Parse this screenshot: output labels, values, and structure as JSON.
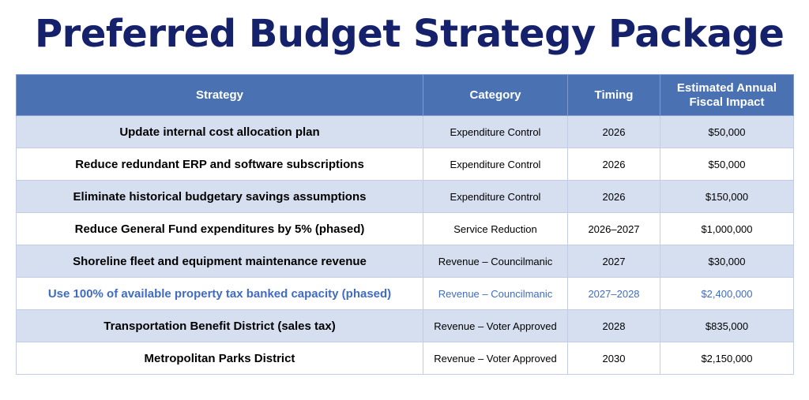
{
  "title": "Preferred Budget Strategy Package",
  "table": {
    "headers": {
      "strategy": "Strategy",
      "category": "Category",
      "timing": "Timing",
      "impact_line1": "Estimated Annual",
      "impact_line2": "Fiscal Impact"
    },
    "rows": [
      {
        "strategy": "Update internal cost allocation plan",
        "category": "Expenditure Control",
        "timing": "2026",
        "impact": "$50,000"
      },
      {
        "strategy": "Reduce redundant ERP and software subscriptions",
        "category": "Expenditure Control",
        "timing": "2026",
        "impact": "$50,000"
      },
      {
        "strategy": "Eliminate historical budgetary savings assumptions",
        "category": "Expenditure Control",
        "timing": "2026",
        "impact": "$150,000"
      },
      {
        "strategy": "Reduce General Fund expenditures by 5% (phased)",
        "category": "Service Reduction",
        "timing": "2026–2027",
        "impact": "$1,000,000"
      },
      {
        "strategy": "Shoreline fleet and equipment maintenance revenue",
        "category": "Revenue – Councilmanic",
        "timing": "2027",
        "impact": "$30,000"
      },
      {
        "strategy": "Use 100% of available property tax banked capacity (phased)",
        "category": "Revenue – Councilmanic",
        "timing": "2027–2028",
        "impact": "$2,400,000"
      },
      {
        "strategy": "Transportation Benefit District (sales tax)",
        "category": "Revenue – Voter Approved",
        "timing": "2028",
        "impact": "$835,000"
      },
      {
        "strategy": "Metropolitan Parks District",
        "category": "Revenue – Voter Approved",
        "timing": "2030",
        "impact": "$2,150,000"
      }
    ]
  },
  "colors": {
    "title": "#15216b",
    "header_background": "#4a72b3",
    "row_band": "#d5dff0",
    "highlight_text": "#3f6cc2"
  }
}
